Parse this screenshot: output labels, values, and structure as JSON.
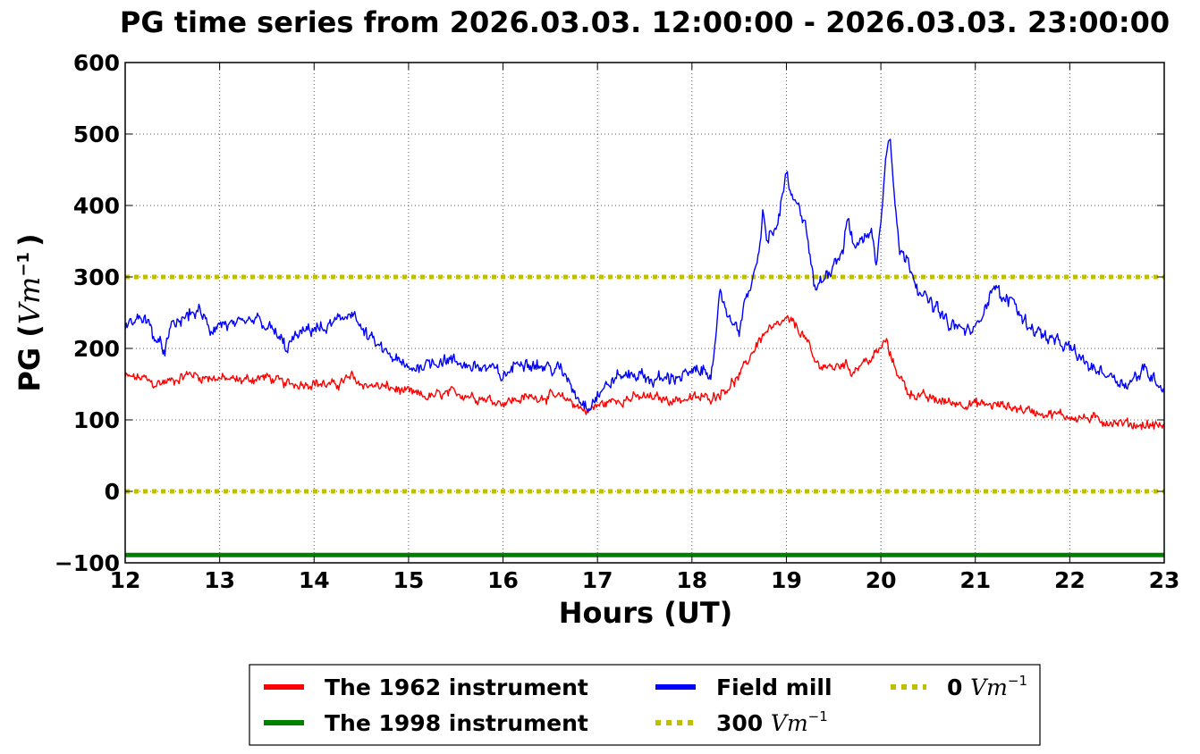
{
  "chart_data": {
    "type": "line",
    "title": "PG time series from 2026.03.03. 12:00:00 - 2026.03.03. 23:00:00",
    "xlabel": "Hours (UT)",
    "ylabel": {
      "text": "PG (",
      "math": "Vm",
      "sup": "−1",
      "close": ")"
    },
    "xlim": [
      12,
      23
    ],
    "ylim": [
      -100,
      600
    ],
    "xticks": [
      12,
      13,
      14,
      15,
      16,
      17,
      18,
      19,
      20,
      21,
      22,
      23
    ],
    "yticks": [
      -100,
      0,
      100,
      200,
      300,
      400,
      500,
      600
    ],
    "grid": true,
    "legend_position": "bottom-center-outside",
    "series": [
      {
        "name": "The 1962 instrument",
        "color": "#ff0000",
        "style": "solid",
        "noise": 9,
        "x": [
          12.0,
          12.2,
          12.3,
          12.5,
          12.7,
          12.8,
          13.0,
          13.2,
          13.5,
          13.7,
          14.0,
          14.2,
          14.4,
          14.5,
          14.8,
          15.0,
          15.2,
          15.5,
          15.8,
          16.0,
          16.3,
          16.5,
          16.7,
          16.8,
          16.9,
          17.0,
          17.2,
          17.5,
          17.8,
          18.0,
          18.2,
          18.3,
          18.4,
          18.5,
          18.6,
          18.7,
          18.8,
          18.9,
          19.0,
          19.1,
          19.2,
          19.3,
          19.5,
          19.6,
          19.7,
          19.8,
          19.9,
          20.0,
          20.05,
          20.1,
          20.2,
          20.3,
          20.5,
          20.7,
          21.0,
          21.3,
          21.5,
          21.7,
          22.0,
          22.3,
          22.5,
          22.7,
          23.0
        ],
        "y": [
          160,
          158,
          150,
          155,
          165,
          160,
          158,
          155,
          160,
          150,
          152,
          148,
          160,
          150,
          145,
          138,
          132,
          138,
          130,
          125,
          132,
          133,
          128,
          118,
          112,
          120,
          128,
          132,
          128,
          130,
          132,
          138,
          148,
          160,
          185,
          210,
          225,
          230,
          240,
          232,
          215,
          180,
          172,
          180,
          168,
          180,
          185,
          200,
          212,
          190,
          160,
          138,
          130,
          125,
          122,
          120,
          115,
          110,
          105,
          100,
          96,
          93,
          92
        ]
      },
      {
        "name": "Field mill",
        "color": "#0000ff",
        "style": "solid",
        "noise": 12,
        "x": [
          12.0,
          12.1,
          12.2,
          12.3,
          12.4,
          12.5,
          12.6,
          12.7,
          12.8,
          12.9,
          13.0,
          13.2,
          13.4,
          13.5,
          13.6,
          13.7,
          13.8,
          14.0,
          14.1,
          14.2,
          14.3,
          14.4,
          14.5,
          14.7,
          14.9,
          15.0,
          15.2,
          15.4,
          15.5,
          15.7,
          15.9,
          16.0,
          16.2,
          16.4,
          16.6,
          16.7,
          16.8,
          16.9,
          17.0,
          17.2,
          17.4,
          17.6,
          17.8,
          18.0,
          18.2,
          18.25,
          18.3,
          18.4,
          18.5,
          18.6,
          18.7,
          18.75,
          18.8,
          18.9,
          19.0,
          19.05,
          19.1,
          19.2,
          19.3,
          19.4,
          19.5,
          19.6,
          19.65,
          19.7,
          19.8,
          19.9,
          19.95,
          20.0,
          20.05,
          20.1,
          20.15,
          20.2,
          20.3,
          20.4,
          20.5,
          20.6,
          20.7,
          20.8,
          20.9,
          21.0,
          21.1,
          21.2,
          21.3,
          21.4,
          21.5,
          21.7,
          21.9,
          22.0,
          22.2,
          22.4,
          22.6,
          22.8,
          23.0
        ],
        "y": [
          230,
          240,
          245,
          220,
          195,
          230,
          240,
          250,
          250,
          225,
          235,
          230,
          240,
          230,
          220,
          200,
          215,
          230,
          225,
          235,
          240,
          255,
          225,
          200,
          180,
          170,
          180,
          185,
          180,
          175,
          170,
          160,
          185,
          175,
          170,
          155,
          130,
          120,
          135,
          160,
          165,
          155,
          160,
          165,
          170,
          200,
          280,
          240,
          230,
          280,
          320,
          390,
          350,
          370,
          445,
          410,
          400,
          380,
          280,
          300,
          320,
          340,
          385,
          345,
          350,
          370,
          310,
          380,
          470,
          500,
          410,
          335,
          320,
          285,
          265,
          255,
          235,
          230,
          225,
          225,
          260,
          290,
          265,
          270,
          240,
          220,
          205,
          200,
          175,
          165,
          150,
          170,
          145
        ]
      },
      {
        "name": "The 1998 instrument",
        "color": "#008000",
        "style": "solid",
        "noise": 0,
        "x": [
          12,
          23
        ],
        "y": [
          -89,
          -89
        ]
      },
      {
        "name": "300 Vm−1",
        "color": "#bfbf00",
        "style": "dotted",
        "noise": 0,
        "x": [
          12,
          23
        ],
        "y": [
          300,
          300
        ]
      },
      {
        "name": "0 Vm−1",
        "color": "#bfbf00",
        "style": "dotted",
        "noise": 0,
        "x": [
          12,
          23
        ],
        "y": [
          0,
          0
        ]
      }
    ]
  },
  "legend": {
    "items": [
      {
        "series": 0,
        "text": "The 1962 instrument",
        "math": "",
        "sup": "",
        "color": "#ff0000",
        "style": "solid"
      },
      {
        "series": 2,
        "text": "The 1998 instrument",
        "math": "",
        "sup": "",
        "color": "#008000",
        "style": "solid"
      },
      {
        "series": 1,
        "text": "Field mill",
        "math": "",
        "sup": "",
        "color": "#0000ff",
        "style": "solid"
      },
      {
        "series": 3,
        "text": "300 ",
        "math": "Vm",
        "sup": "−1",
        "color": "#bfbf00",
        "style": "dotted"
      },
      {
        "series": 4,
        "text": "0 ",
        "math": "Vm",
        "sup": "−1",
        "color": "#bfbf00",
        "style": "dotted"
      }
    ]
  }
}
